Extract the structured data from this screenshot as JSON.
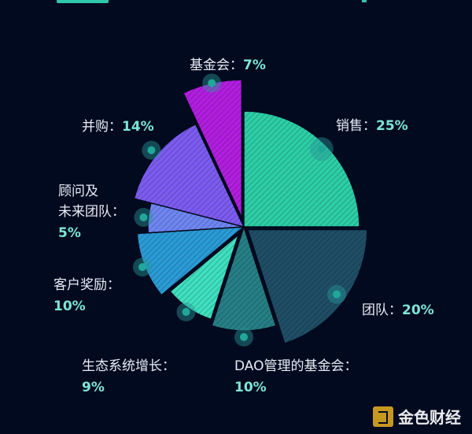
{
  "chart_data": {
    "type": "pie",
    "categories": [
      "销售",
      "团队",
      "DAO管理的基金会",
      "生态系统增长",
      "客户奖励",
      "顾问及未来团队",
      "并购",
      "基金会"
    ],
    "values": [
      25,
      20,
      10,
      9,
      10,
      5,
      14,
      7
    ],
    "labels": [
      {
        "name": "销售",
        "name_lines": [
          "销售："
        ],
        "pct": "25%"
      },
      {
        "name": "团队",
        "name_lines": [
          "团队："
        ],
        "pct": "20%"
      },
      {
        "name": "DAO管理的基金会",
        "name_lines": [
          "DAO管理的基金会："
        ],
        "pct": "10%"
      },
      {
        "name": "生态系统增长",
        "name_lines": [
          "生态系统增长："
        ],
        "pct": "9%"
      },
      {
        "name": "客户奖励",
        "name_lines": [
          "客户奖励："
        ],
        "pct": "10%"
      },
      {
        "name": "顾问及未来团队",
        "name_lines": [
          "顾问及",
          "未来团队："
        ],
        "pct": "5%"
      },
      {
        "name": "并购",
        "name_lines": [
          "并购："
        ],
        "pct": "14%"
      },
      {
        "name": "基金会",
        "name_lines": [
          "基金会："
        ],
        "pct": "7%"
      }
    ],
    "colors": [
      "#2dcea6",
      "#1f4e66",
      "#267f85",
      "#3fe0bf",
      "#2a9bd6",
      "#6f86f2",
      "#7c5cf0",
      "#b21ee0"
    ]
  },
  "watermark": {
    "text": "金色财经"
  }
}
